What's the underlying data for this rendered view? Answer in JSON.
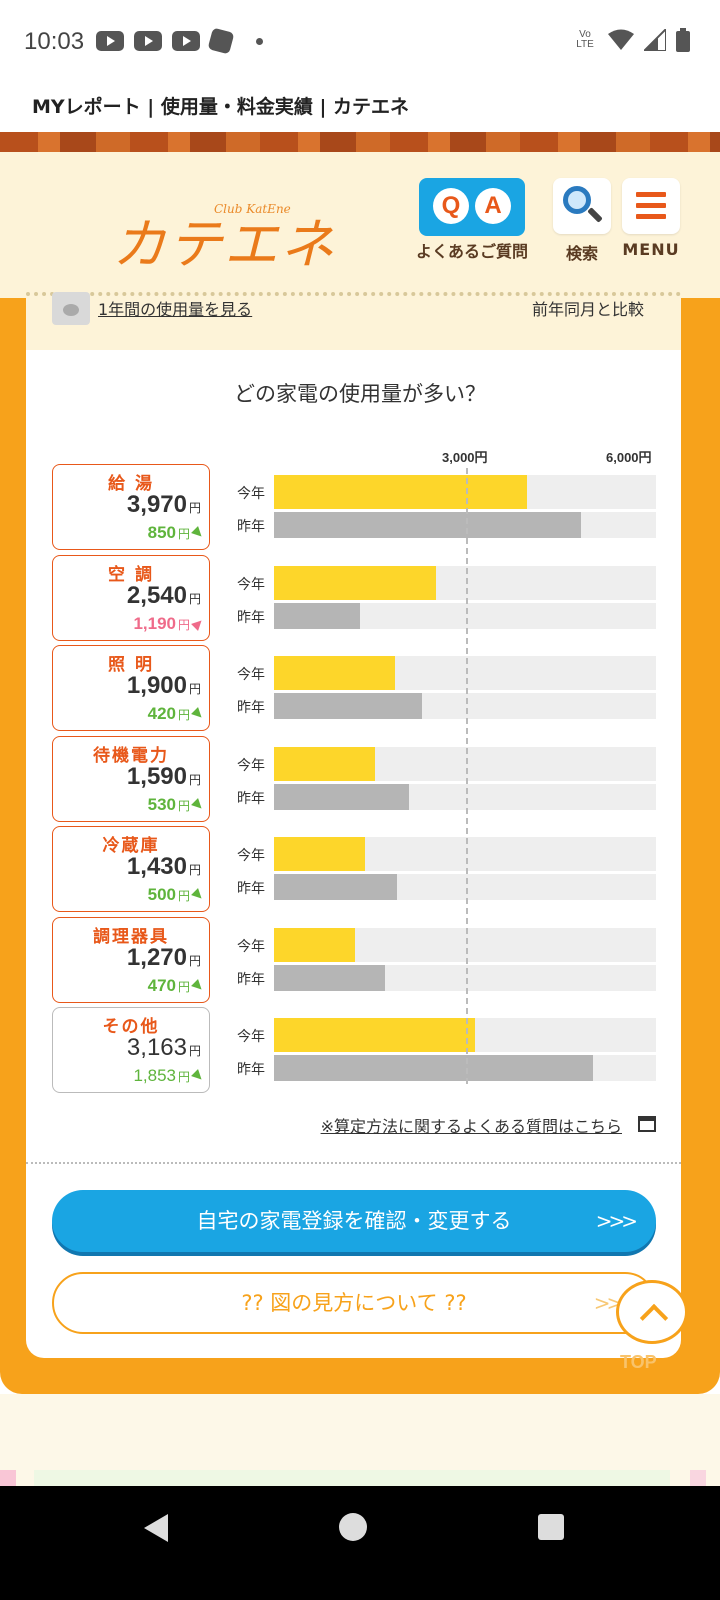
{
  "status": {
    "time": "10:03",
    "network": "Vo LTE"
  },
  "page_title": "MYレポート | 使用量・料金実績 | カテエネ",
  "header": {
    "logo_sub": "Club KatEne",
    "logo": "カテエネ",
    "faq_label": "よくあるご質問",
    "faq_q": "Q",
    "faq_a": "A",
    "search_label": "検索",
    "menu_label": "MENU"
  },
  "subheader": {
    "year_link": "1年間の使用量を見る",
    "compare": "前年同月と比較"
  },
  "chart": {
    "title": "どの家電の使用量が多い？",
    "axis_3000": "3,000円",
    "axis_6000": "6,000円",
    "label_current": "今年",
    "label_previous": "昨年",
    "yen": "円",
    "colors": {
      "current": "#fdd62a",
      "previous": "#b5b5b5",
      "increase": "#ef6b8a",
      "decrease": "#5fb43c"
    }
  },
  "chart_data": {
    "type": "bar",
    "title": "どの家電の使用量が多い？",
    "unit": "円",
    "xlim": [
      0,
      6000
    ],
    "ticks": [
      "3,000円",
      "6,000円"
    ],
    "categories": [
      "給 湯",
      "空 調",
      "照 明",
      "待機電力",
      "冷蔵庫",
      "調理器具",
      "その他"
    ],
    "series": [
      {
        "name": "今年",
        "values": [
          3970,
          2540,
          1900,
          1590,
          1430,
          1270,
          3163
        ]
      },
      {
        "name": "昨年",
        "values": [
          4820,
          1350,
          2320,
          2120,
          1930,
          1740,
          5016
        ]
      }
    ],
    "value_labels": [
      "3,970",
      "2,540",
      "1,900",
      "1,590",
      "1,430",
      "1,270",
      "3,163"
    ],
    "diff_labels": [
      "850",
      "1,190",
      "420",
      "530",
      "500",
      "470",
      "1,853"
    ],
    "diff_direction": [
      "down",
      "up",
      "down",
      "down",
      "down",
      "down",
      "down"
    ]
  },
  "links": {
    "faq_calc": "※算定方法に関するよくある質問はこちら"
  },
  "buttons": {
    "register": "自宅の家電登録を確認・変更する",
    "guide": "?? 図の見方について ??",
    "chevron": ">>>",
    "top": "TOP"
  }
}
